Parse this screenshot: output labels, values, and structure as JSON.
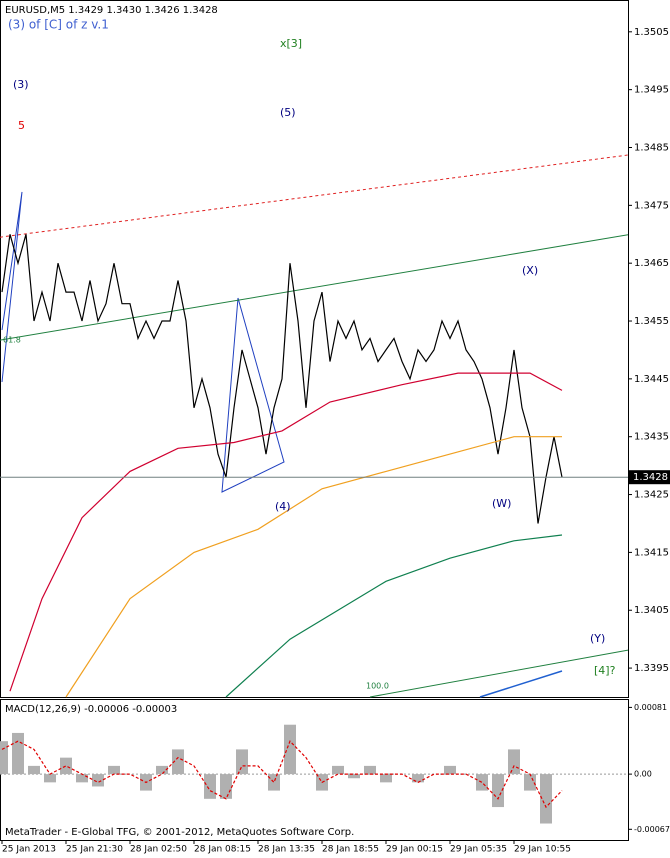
{
  "chart_data": [
    {
      "type": "line",
      "title": "EURUSD,M5  1.3429 1.3430 1.3426 1.3428",
      "subtitle": "(3) of [C] of z v.1",
      "xlim": [
        -0.25,
        78.25
      ],
      "ylim": [
        1.339,
        1.35105
      ],
      "yticks": [
        1.3505,
        1.3495,
        1.3485,
        1.3475,
        1.3465,
        1.3455,
        1.3445,
        1.3435,
        1.3425,
        1.3415,
        1.3405,
        1.3395
      ],
      "last_price": 1.3428,
      "series": [
        {
          "color": "#000000",
          "x": [
            0,
            1,
            2,
            3,
            4,
            5,
            6,
            7,
            8,
            9,
            10,
            11,
            12,
            13,
            14,
            15,
            16,
            17,
            18,
            19,
            20,
            21,
            22,
            23,
            24,
            25,
            26,
            27,
            28,
            29,
            30,
            31,
            32,
            33,
            34,
            35,
            36,
            37,
            38,
            39,
            40,
            41,
            42,
            43,
            44,
            45,
            46,
            47,
            48,
            49,
            50,
            51,
            52,
            53,
            54,
            55,
            56,
            57,
            58,
            59,
            60,
            61,
            62,
            63,
            64,
            65,
            66,
            67,
            68,
            69,
            70
          ],
          "values": [
            1.346,
            1.347,
            1.3465,
            1.347,
            1.3455,
            1.346,
            1.3455,
            1.3465,
            1.346,
            1.346,
            1.3455,
            1.3462,
            1.3455,
            1.3458,
            1.3465,
            1.3458,
            1.3458,
            1.3452,
            1.3455,
            1.3452,
            1.3455,
            1.3455,
            1.3462,
            1.3455,
            1.344,
            1.3445,
            1.344,
            1.3432,
            1.3428,
            1.344,
            1.345,
            1.3445,
            1.344,
            1.3432,
            1.344,
            1.3445,
            1.3465,
            1.3455,
            1.344,
            1.3455,
            1.346,
            1.3448,
            1.3455,
            1.3452,
            1.3455,
            1.345,
            1.3452,
            1.3448,
            1.345,
            1.3452,
            1.3448,
            1.3445,
            1.345,
            1.3448,
            1.345,
            1.3455,
            1.3452,
            1.3455,
            1.345,
            1.3448,
            1.3445,
            1.344,
            1.3432,
            1.344,
            1.345,
            1.344,
            1.3435,
            1.342,
            1.3428,
            1.3435,
            1.3428
          ]
        },
        {
          "color": "#d00030",
          "x": [
            1,
            5,
            10,
            16,
            22,
            29,
            35,
            41,
            50,
            57,
            62,
            66,
            70
          ],
          "values": [
            1.3391,
            1.3407,
            1.3421,
            1.3429,
            1.3433,
            1.3434,
            1.3436,
            1.3441,
            1.3444,
            1.3446,
            1.3446,
            1.3446,
            1.3443
          ]
        },
        {
          "color": "#f0a020",
          "x": [
            8,
            16,
            24,
            32,
            40,
            48,
            56,
            64,
            70
          ],
          "values": [
            1.339,
            1.3407,
            1.3415,
            1.3419,
            1.3426,
            1.3429,
            1.3432,
            1.3435,
            1.3435
          ]
        },
        {
          "color": "#108050",
          "x": [
            28,
            36,
            48,
            56,
            64,
            70
          ],
          "values": [
            1.339,
            1.34,
            1.341,
            1.3414,
            1.3417,
            1.3418
          ]
        }
      ],
      "trendlines": [
        {
          "color": "#e02020",
          "dashed": true,
          "x": [
            -0.25,
            78.25
          ],
          "values": [
            1.34695,
            1.34837
          ]
        },
        {
          "color": "#208040",
          "dashed": false,
          "x": [
            -0.25,
            78.25
          ],
          "values": [
            1.34517,
            1.34699
          ]
        },
        {
          "color": "#208040",
          "dashed": false,
          "x": [
            46,
            78.25
          ],
          "values": [
            1.339,
            1.33981
          ]
        }
      ],
      "annotations": [
        {
          "text": "x[3]",
          "color": "#208020"
        },
        {
          "text": "(3)",
          "color": "#000080"
        },
        {
          "text": "5",
          "color": "#e00000"
        },
        {
          "text": "(5)",
          "color": "#000080"
        },
        {
          "text": "(X)",
          "color": "#000080"
        },
        {
          "text": "(4)",
          "color": "#000080"
        },
        {
          "text": "(W)",
          "color": "#000080"
        },
        {
          "text": "(Y)",
          "color": "#000080"
        },
        {
          "text": "[4]?",
          "color": "#208020"
        },
        {
          "text": "61.8",
          "color": "#208040"
        },
        {
          "text": "100.0",
          "color": "#208040"
        }
      ]
    },
    {
      "type": "bar",
      "title": "MACD(12,26,9) -0.00006 -0.00003",
      "xlim": [
        -0.25,
        78.25
      ],
      "ylim": [
        -0.0008,
        0.0009
      ],
      "yticks": [
        0.00081,
        {
          "value": 0,
          "label": "0.00"
        },
        -0.00067
      ],
      "xticks": [
        {
          "value": 0,
          "label": "25 Jan 2013"
        },
        {
          "value": 8,
          "label": "25 Jan 21:30"
        },
        {
          "value": 16,
          "label": "28 Jan 02:50"
        },
        {
          "value": 24,
          "label": "28 Jan 08:15"
        },
        {
          "value": 32,
          "label": "28 Jan 13:35"
        },
        {
          "value": 40,
          "label": "28 Jan 18:55"
        },
        {
          "value": 48,
          "label": "29 Jan 00:15"
        },
        {
          "value": 56,
          "label": "29 Jan 05:35"
        },
        {
          "value": 64,
          "label": "29 Jan 10:55"
        }
      ],
      "x": [
        0,
        2,
        4,
        6,
        8,
        10,
        12,
        14,
        16,
        18,
        20,
        22,
        24,
        26,
        28,
        30,
        32,
        34,
        36,
        38,
        40,
        42,
        44,
        46,
        48,
        50,
        52,
        54,
        56,
        58,
        60,
        62,
        64,
        66,
        68,
        70
      ],
      "series": [
        {
          "color": "#b0b0b0",
          "values": [
            0.0004,
            0.0005,
            0.0001,
            -0.0001,
            0.0002,
            -0.0001,
            -0.00015,
            0.0001,
            0,
            -0.0002,
            0.0001,
            0.0003,
            0,
            -0.0003,
            -0.0003,
            0.0003,
            0,
            -0.0002,
            0.0006,
            0,
            -0.0002,
            0.0001,
            -5e-05,
            0.0001,
            -0.0001,
            0,
            -0.0001,
            0,
            0.0001,
            0,
            -0.0002,
            -0.0004,
            0.0003,
            -0.0002,
            -0.0006,
            0
          ]
        },
        {
          "color": "#e00000",
          "values": [
            0.0003,
            0.0004,
            0.0003,
            0,
            0.0001,
            0,
            -0.0001,
            0,
            0,
            -0.0001,
            0,
            0.0002,
            0.0001,
            -0.0002,
            -0.0003,
            0.0001,
            0.0001,
            -0.0001,
            0.0004,
            0.0002,
            -0.0001,
            0,
            0,
            0,
            0,
            0,
            -0.0001,
            0,
            0,
            0,
            -0.0001,
            -0.0003,
            0.0001,
            0,
            -0.0004,
            -0.0002
          ]
        }
      ]
    }
  ],
  "watermark": "MetaTrader - E-Global TFG, © 2001-2012, MetaQuotes Software Corp."
}
